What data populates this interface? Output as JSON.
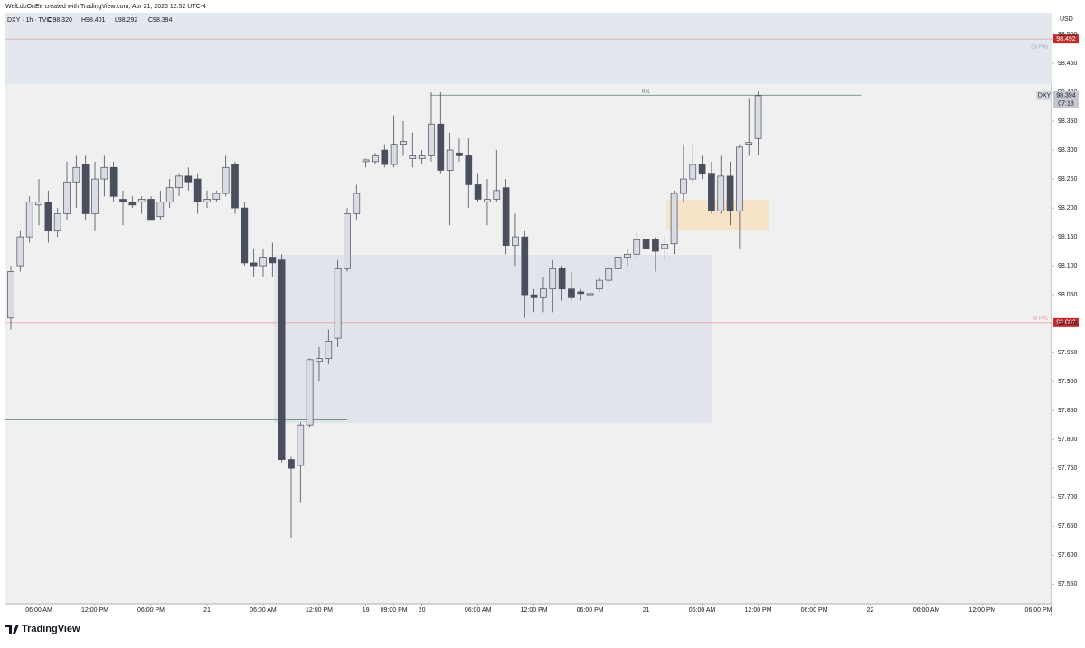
{
  "chart_data": {
    "type": "candlestick",
    "header": "WelLdoOnEe created with TradingView.com, Apr 21, 2026 12:52 UTC-4",
    "symbol": "DXY · 1h · TVC",
    "ohlc_text": [
      "O98.320",
      "H98.401",
      "L98.292",
      "C98.394"
    ],
    "currency": "USD",
    "symbol_tag": "DXY",
    "countdown": "07:18",
    "brand": "TradingView",
    "up_color": "#d9dce3",
    "down_color": "#4a4f5e",
    "outline_color": "#4a4f5e",
    "open": [
      98.01,
      98.1,
      98.15,
      98.205,
      98.21,
      98.16,
      98.19,
      98.245,
      98.275,
      98.19,
      98.25,
      98.27,
      98.215,
      98.21,
      98.21,
      98.215,
      98.185,
      98.21,
      98.235,
      98.255,
      98.25,
      98.21,
      98.215,
      98.225,
      98.275,
      98.2,
      98.105,
      98.1,
      98.115,
      98.11,
      97.765,
      97.755,
      97.825,
      97.935,
      97.94,
      97.975,
      98.095,
      98.19,
      98.28,
      98.28,
      98.3,
      98.275,
      98.31,
      98.285,
      98.285,
      98.29,
      98.345,
      98.265,
      98.295,
      98.29,
      98.24,
      98.21,
      98.215,
      98.235,
      98.135,
      98.15,
      98.05,
      98.045,
      98.06,
      98.095,
      98.06,
      98.055,
      98.05,
      98.06,
      98.075,
      98.095,
      98.115,
      98.12,
      98.145,
      98.145,
      98.13,
      98.138,
      98.225,
      98.25,
      98.275,
      98.26,
      98.195,
      98.255,
      98.195,
      98.31,
      98.32
    ],
    "high": [
      98.1,
      98.16,
      98.22,
      98.25,
      98.23,
      98.2,
      98.28,
      98.29,
      98.29,
      98.28,
      98.29,
      98.28,
      98.23,
      98.22,
      98.22,
      98.22,
      98.23,
      98.25,
      98.26,
      98.27,
      98.26,
      98.23,
      98.23,
      98.29,
      98.28,
      98.21,
      98.13,
      98.13,
      98.14,
      98.12,
      97.77,
      97.83,
      97.94,
      97.96,
      97.99,
      98.11,
      98.2,
      98.24,
      98.285,
      98.295,
      98.31,
      98.36,
      98.35,
      98.33,
      98.3,
      98.4,
      98.4,
      98.33,
      98.32,
      98.32,
      98.26,
      98.25,
      98.3,
      98.25,
      98.19,
      98.16,
      98.06,
      98.08,
      98.11,
      98.1,
      98.09,
      98.06,
      98.055,
      98.08,
      98.1,
      98.12,
      98.13,
      98.16,
      98.16,
      98.15,
      98.15,
      98.23,
      98.31,
      98.31,
      98.29,
      98.28,
      98.29,
      98.28,
      98.31,
      98.39,
      98.401
    ],
    "low": [
      97.99,
      98.09,
      98.14,
      98.17,
      98.14,
      98.15,
      98.18,
      98.2,
      98.18,
      98.16,
      98.22,
      98.21,
      98.17,
      98.2,
      98.19,
      98.18,
      98.18,
      98.2,
      98.22,
      98.23,
      98.19,
      98.2,
      98.21,
      98.22,
      98.19,
      98.1,
      98.08,
      98.08,
      98.08,
      97.76,
      97.63,
      97.69,
      97.82,
      97.9,
      97.93,
      97.96,
      98.09,
      98.18,
      98.27,
      98.275,
      98.27,
      98.27,
      98.29,
      98.27,
      98.275,
      98.28,
      98.26,
      98.17,
      98.28,
      98.2,
      98.21,
      98.17,
      98.21,
      98.12,
      98.1,
      98.01,
      98.02,
      98.02,
      98.02,
      98.04,
      98.04,
      98.04,
      98.04,
      98.055,
      98.07,
      98.09,
      98.1,
      98.11,
      98.12,
      98.09,
      98.11,
      98.12,
      98.21,
      98.24,
      98.25,
      98.19,
      98.19,
      98.17,
      98.13,
      98.29,
      98.292
    ],
    "close": [
      98.09,
      98.15,
      98.21,
      98.21,
      98.16,
      98.19,
      98.245,
      98.27,
      98.19,
      98.25,
      98.27,
      98.22,
      98.21,
      98.205,
      98.215,
      98.18,
      98.21,
      98.235,
      98.255,
      98.245,
      98.21,
      98.215,
      98.225,
      98.27,
      98.2,
      98.105,
      98.1,
      98.115,
      98.105,
      97.765,
      97.75,
      97.825,
      97.938,
      97.94,
      97.97,
      98.095,
      98.19,
      98.225,
      98.283,
      98.29,
      98.275,
      98.31,
      98.315,
      98.29,
      98.29,
      98.345,
      98.265,
      98.3,
      98.29,
      98.24,
      98.215,
      98.215,
      98.23,
      98.135,
      98.15,
      98.05,
      98.045,
      98.06,
      98.095,
      98.06,
      98.045,
      98.052,
      98.052,
      98.075,
      98.095,
      98.115,
      98.12,
      98.145,
      98.13,
      98.125,
      98.137,
      98.225,
      98.25,
      98.275,
      98.26,
      98.195,
      98.255,
      98.195,
      98.305,
      98.313,
      98.394
    ],
    "xlim": [
      -0.68,
      111.4
    ],
    "ylim": [
      97.516,
      98.5375
    ],
    "grid": false,
    "xticks": [
      {
        "value": 3,
        "label": "06:00 AM"
      },
      {
        "value": 9,
        "label": "12:00 PM"
      },
      {
        "value": 15,
        "label": "06:00 PM"
      },
      21,
      {
        "value": 27,
        "label": "06:00 AM"
      },
      {
        "value": 33,
        "label": "12:00 PM"
      },
      {
        "value": 38,
        "label": "19"
      },
      {
        "value": 41,
        "label": "09:00 PM"
      },
      {
        "value": 44,
        "label": "20"
      },
      {
        "value": 50,
        "label": "06:00 AM"
      },
      {
        "value": 56,
        "label": "12:00 PM"
      },
      {
        "value": 62,
        "label": "06:00 PM"
      },
      {
        "value": 68,
        "label": "21"
      },
      {
        "value": 74,
        "label": "06:00 AM"
      },
      {
        "value": 80,
        "label": "12:00 PM"
      },
      {
        "value": 86,
        "label": "06:00 PM"
      },
      {
        "value": 92,
        "label": "22"
      },
      {
        "value": 98,
        "label": "06:00 AM"
      },
      {
        "value": 104,
        "label": "12:00 PM"
      },
      {
        "value": 110,
        "label": "06:00 PM"
      }
    ],
    "yticks": [
      {
        "value": 98.5,
        "label": "98.500"
      },
      {
        "value": 98.45,
        "label": "98.450"
      },
      {
        "value": 98.4,
        "label": "98.400"
      },
      {
        "value": 98.35,
        "label": "98.350"
      },
      {
        "value": 98.3,
        "label": "98.300"
      },
      {
        "value": 98.25,
        "label": "98.250"
      },
      {
        "value": 98.2,
        "label": "98.200"
      },
      {
        "value": 98.15,
        "label": "98.150"
      },
      {
        "value": 98.1,
        "label": "98.100"
      },
      {
        "value": 98.05,
        "label": "98.050"
      },
      {
        "value": 98.0,
        "label": "98.000"
      },
      {
        "value": 97.95,
        "label": "97.950"
      },
      {
        "value": 97.9,
        "label": "97.900"
      },
      {
        "value": 97.85,
        "label": "97.850"
      },
      {
        "value": 97.8,
        "label": "97.800"
      },
      {
        "value": 97.75,
        "label": "97.750"
      },
      {
        "value": 97.7,
        "label": "97.700"
      },
      {
        "value": 97.65,
        "label": "97.650"
      },
      {
        "value": 97.6,
        "label": "97.600"
      },
      {
        "value": 97.55,
        "label": "97.550"
      }
    ],
    "zones": [
      {
        "label": "(D) FVG",
        "y0": 98.414,
        "y1": 98.5375,
        "color": "#e3e7ee"
      },
      {
        "x0": 28.2,
        "x1": 75.1,
        "y0": 97.828,
        "y1": 98.119,
        "color": "#e1e4eb"
      },
      {
        "x0": 70.2,
        "x1": 81.1,
        "y0": 98.161,
        "y1": 98.214,
        "color": "#f6e3c8"
      }
    ],
    "levels": [
      {
        "value": 98.492,
        "color": "#e59aa2",
        "tag": true
      },
      {
        "value": 98.002,
        "label": "W FVG",
        "color": "#e59aa2",
        "tag": true
      },
      {
        "value": 98.395,
        "label": "BSL",
        "x0": 45,
        "x1": 91,
        "color": "#4f7f6b"
      },
      {
        "value": 97.834,
        "x1": 36,
        "color": "#4f7f6b"
      }
    ]
  }
}
